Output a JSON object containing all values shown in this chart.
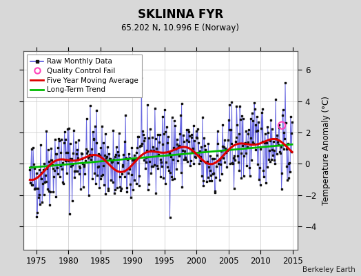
{
  "title": "SKLINNA FYR",
  "subtitle": "65.202 N, 10.996 E (Norway)",
  "ylabel": "Temperature Anomaly (°C)",
  "credit": "Berkeley Earth",
  "xlim": [
    1973.0,
    2015.8
  ],
  "ylim": [
    -5.5,
    7.2
  ],
  "yticks": [
    -4,
    -2,
    0,
    2,
    4,
    6
  ],
  "xticks": [
    1975,
    1980,
    1985,
    1990,
    1995,
    2000,
    2005,
    2010,
    2015
  ],
  "bg_color": "#d8d8d8",
  "plot_bg_color": "#ffffff",
  "raw_line_color": "#5555dd",
  "raw_marker_color": "#111111",
  "ma_color": "#dd0000",
  "trend_color": "#00bb00",
  "qc_color": "#ff44bb",
  "seed": 42
}
